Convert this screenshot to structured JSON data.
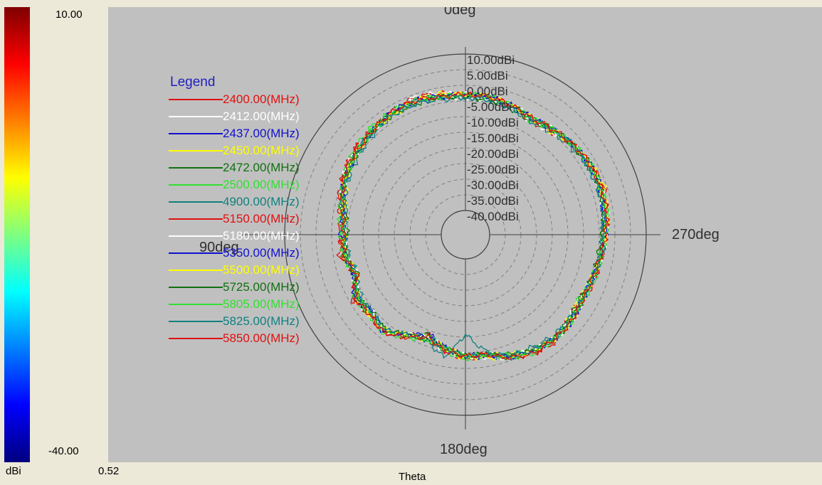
{
  "colorbar": {
    "max_label": "10.00",
    "min_label": "-40.00",
    "unit_label": "dBi",
    "extra_value": "0.52",
    "gradient_colors": [
      "#7f0000",
      "#ff0000",
      "#ff7f00",
      "#ffff00",
      "#7fff7f",
      "#00ffff",
      "#007fff",
      "#0000ff",
      "#00007f"
    ]
  },
  "axis": {
    "theta_label": "Theta"
  },
  "chart_data": {
    "type": "polar",
    "title": "",
    "radial_unit": "dBi",
    "radial_range": [
      -40,
      10
    ],
    "radial_ticks": [
      10,
      5,
      0,
      -5,
      -10,
      -15,
      -20,
      -25,
      -30,
      -35,
      -40
    ],
    "radial_tick_labels": [
      "10.00dBi",
      "5.00dBi",
      "0.00dBi",
      "-5.00dBi",
      "-10.00dBi",
      "-15.00dBi",
      "-20.00dBi",
      "-25.00dBi",
      "-30.00dBi",
      "-35.00dBi",
      "-40.00dBi"
    ],
    "angle_labels": [
      {
        "angle": 0,
        "text": "0deg"
      },
      {
        "angle": 90,
        "text": "90deg"
      },
      {
        "angle": 180,
        "text": "180deg"
      },
      {
        "angle": 270,
        "text": "270deg"
      }
    ],
    "grid": true,
    "legend_title": "Legend",
    "legend_position": "left",
    "series": [
      {
        "name": "2400.00(MHz)",
        "color": "#e01010",
        "r_shape": [
          -3,
          -2,
          -1,
          -2,
          -3,
          -3,
          -4,
          -6,
          -9,
          -8,
          -7,
          -11,
          -6,
          -8,
          -7,
          -10,
          -14,
          -10,
          -8,
          -9,
          -6,
          -4,
          -3,
          -5,
          -6,
          -5,
          -4,
          -3,
          -2,
          -1,
          -2,
          -3,
          -5,
          -6,
          -4,
          -3
        ]
      },
      {
        "name": "2412.00(MHz)",
        "color": "#ffffff",
        "r_shape": [
          -3,
          -2,
          -1,
          -2,
          -3,
          -4,
          -4,
          -6,
          -9,
          -9,
          -8,
          -11,
          -7,
          -8,
          -7,
          -11,
          -13,
          -10,
          -9,
          -9,
          -7,
          -5,
          -4,
          -5,
          -6,
          -5,
          -4,
          -3,
          -2,
          -2,
          -2,
          -3,
          -5,
          -6,
          -4,
          -3
        ]
      },
      {
        "name": "2437.00(MHz)",
        "color": "#1010d0",
        "r_shape": [
          -3,
          -3,
          -2,
          -2,
          -3,
          -4,
          -5,
          -6,
          -8,
          -9,
          -9,
          -10,
          -8,
          -9,
          -7,
          -11,
          -14,
          -11,
          -9,
          -8,
          -7,
          -5,
          -4,
          -4,
          -5,
          -5,
          -4,
          -3,
          -3,
          -2,
          -2,
          -3,
          -4,
          -5,
          -4,
          -3
        ]
      },
      {
        "name": "2450.00(MHz)",
        "color": "#ffff00",
        "r_shape": [
          -3,
          -2,
          -2,
          -3,
          -3,
          -4,
          -5,
          -7,
          -9,
          -9,
          -8,
          -11,
          -7,
          -8,
          -8,
          -10,
          -13,
          -11,
          -8,
          -9,
          -7,
          -5,
          -4,
          -5,
          -6,
          -5,
          -4,
          -3,
          -2,
          -1,
          -2,
          -3,
          -5,
          -5,
          -4,
          -3
        ]
      },
      {
        "name": "2472.00(MHz)",
        "color": "#107010",
        "r_shape": [
          -4,
          -3,
          -2,
          -2,
          -3,
          -4,
          -4,
          -6,
          -9,
          -10,
          -8,
          -11,
          -7,
          -8,
          -8,
          -10,
          -14,
          -10,
          -9,
          -9,
          -7,
          -5,
          -4,
          -5,
          -6,
          -5,
          -5,
          -4,
          -3,
          -2,
          -2,
          -3,
          -4,
          -6,
          -5,
          -4
        ]
      },
      {
        "name": "2500.00(MHz)",
        "color": "#30e030",
        "r_shape": [
          -3,
          -3,
          -2,
          -2,
          -2,
          -3,
          -4,
          -6,
          -8,
          -9,
          -8,
          -10,
          -7,
          -8,
          -7,
          -10,
          -14,
          -10,
          -8,
          -9,
          -7,
          -5,
          -4,
          -4,
          -6,
          -5,
          -4,
          -3,
          -2,
          -2,
          -2,
          -3,
          -4,
          -6,
          -4,
          -3
        ]
      },
      {
        "name": "4900.00(MHz)",
        "color": "#108080",
        "r_shape": [
          -4,
          -4,
          -3,
          -3,
          -4,
          -5,
          -6,
          -7,
          -9,
          -9,
          -10,
          -11,
          -9,
          -9,
          -8,
          -11,
          -12,
          -8,
          -16,
          -10,
          -6,
          -6,
          -5,
          -5,
          -5,
          -5,
          -4,
          -4,
          -3,
          -3,
          -3,
          -4,
          -5,
          -6,
          -5,
          -4
        ]
      },
      {
        "name": "5150.00(MHz)",
        "color": "#e01010",
        "r_shape": [
          -3,
          -3,
          -2,
          -2,
          -3,
          -3,
          -4,
          -5,
          -7,
          -8,
          -9,
          -10,
          -7,
          -8,
          -7,
          -11,
          -13,
          -11,
          -9,
          -9,
          -6,
          -4,
          -4,
          -4,
          -5,
          -4,
          -4,
          -3,
          -2,
          -2,
          -2,
          -3,
          -4,
          -5,
          -4,
          -3
        ]
      },
      {
        "name": "5180.00(MHz)",
        "color": "#ffffff",
        "r_shape": [
          -4,
          -3,
          -2,
          -2,
          -3,
          -4,
          -4,
          -6,
          -8,
          -9,
          -9,
          -10,
          -8,
          -9,
          -7,
          -11,
          -13,
          -11,
          -9,
          -8,
          -6,
          -5,
          -4,
          -4,
          -5,
          -5,
          -4,
          -3,
          -3,
          -2,
          -2,
          -3,
          -4,
          -5,
          -4,
          -4
        ]
      },
      {
        "name": "5350.00(MHz)",
        "color": "#1010d0",
        "r_shape": [
          -3,
          -3,
          -2,
          -2,
          -3,
          -4,
          -5,
          -6,
          -8,
          -8,
          -9,
          -10,
          -7,
          -9,
          -7,
          -11,
          -13,
          -11,
          -9,
          -9,
          -6,
          -5,
          -4,
          -4,
          -5,
          -5,
          -4,
          -3,
          -3,
          -2,
          -2,
          -3,
          -4,
          -5,
          -4,
          -3
        ]
      },
      {
        "name": "5500.00(MHz)",
        "color": "#ffff00",
        "r_shape": [
          -3,
          -3,
          -2,
          -3,
          -3,
          -4,
          -5,
          -6,
          -8,
          -9,
          -9,
          -11,
          -8,
          -8,
          -8,
          -11,
          -12,
          -11,
          -9,
          -8,
          -6,
          -5,
          -4,
          -4,
          -5,
          -5,
          -4,
          -3,
          -2,
          -2,
          -2,
          -3,
          -4,
          -5,
          -4,
          -3
        ]
      },
      {
        "name": "5725.00(MHz)",
        "color": "#107010",
        "r_shape": [
          -4,
          -3,
          -3,
          -3,
          -3,
          -4,
          -5,
          -6,
          -8,
          -9,
          -9,
          -10,
          -8,
          -9,
          -8,
          -11,
          -12,
          -11,
          -9,
          -9,
          -6,
          -5,
          -4,
          -4,
          -5,
          -5,
          -4,
          -4,
          -3,
          -2,
          -3,
          -3,
          -4,
          -5,
          -4,
          -4
        ]
      },
      {
        "name": "5805.00(MHz)",
        "color": "#30e030",
        "r_shape": [
          -3,
          -3,
          -2,
          -2,
          -3,
          -4,
          -5,
          -6,
          -7,
          -8,
          -9,
          -10,
          -8,
          -8,
          -7,
          -10,
          -12,
          -11,
          -9,
          -9,
          -6,
          -4,
          -4,
          -4,
          -5,
          -4,
          -4,
          -3,
          -2,
          -2,
          -2,
          -3,
          -4,
          -5,
          -4,
          -3
        ]
      },
      {
        "name": "5825.00(MHz)",
        "color": "#108080",
        "r_shape": [
          -4,
          -3,
          -3,
          -3,
          -3,
          -4,
          -5,
          -6,
          -8,
          -9,
          -9,
          -11,
          -8,
          -9,
          -8,
          -11,
          -12,
          -11,
          -9,
          -9,
          -7,
          -5,
          -4,
          -5,
          -5,
          -5,
          -4,
          -4,
          -3,
          -3,
          -3,
          -3,
          -4,
          -5,
          -5,
          -4
        ]
      },
      {
        "name": "5850.00(MHz)",
        "color": "#e01010",
        "r_shape": [
          -3,
          -3,
          -2,
          -2,
          -3,
          -4,
          -4,
          -6,
          -8,
          -9,
          -8,
          -11,
          -7,
          -8,
          -7,
          -10,
          -13,
          -10,
          -9,
          -9,
          -6,
          -4,
          -4,
          -4,
          -5,
          -5,
          -4,
          -3,
          -2,
          -2,
          -2,
          -3,
          -4,
          -5,
          -4,
          -3
        ]
      }
    ]
  }
}
